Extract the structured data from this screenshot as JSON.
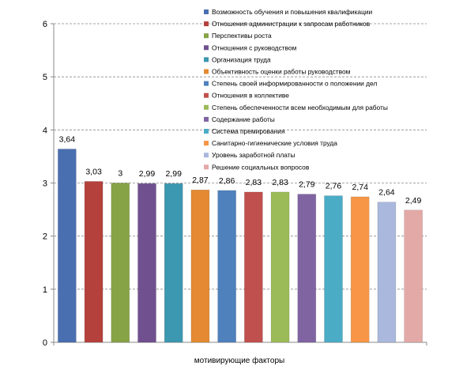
{
  "chart_data": {
    "type": "bar",
    "xlabel": "мотивирующие факторы",
    "ylabel": "",
    "title": "",
    "ylim": [
      0,
      6
    ],
    "yticks": [
      0,
      1,
      2,
      3,
      4,
      5,
      6
    ],
    "grid": true,
    "legend_position": "top-right",
    "series": [
      {
        "name": "Возможность обучения и повышения квалификации",
        "value": 3.64,
        "label": "3,64",
        "color": "#4a6fb0"
      },
      {
        "name": "Отношения администрации к запросам работников",
        "value": 3.03,
        "label": "3,03",
        "color": "#b5413c"
      },
      {
        "name": "Перспективы роста",
        "value": 3.0,
        "label": "3",
        "color": "#86a346"
      },
      {
        "name": "Отношения с руководством",
        "value": 2.99,
        "label": "2,99",
        "color": "#70508f"
      },
      {
        "name": "Организация труда",
        "value": 2.99,
        "label": "2,99",
        "color": "#3c97b0"
      },
      {
        "name": "Объективность оценки работы руководством",
        "value": 2.87,
        "label": "2,87",
        "color": "#e48a32"
      },
      {
        "name": "Степень своей информированности о положении дел",
        "value": 2.86,
        "label": "2,86",
        "color": "#4f81bd"
      },
      {
        "name": "Отношения в коллективе",
        "value": 2.83,
        "label": "2,83",
        "color": "#c0504d"
      },
      {
        "name": "Степень обеспеченности всем необходимым для работы",
        "value": 2.83,
        "label": "2,83",
        "color": "#9bbb59"
      },
      {
        "name": "Содержание работы",
        "value": 2.79,
        "label": "2,79",
        "color": "#8064a2"
      },
      {
        "name": "Система премирования",
        "value": 2.76,
        "label": "2,76",
        "color": "#4bacc6"
      },
      {
        "name": "Санитарно-гигиенические условия труда",
        "value": 2.74,
        "label": "2,74",
        "color": "#f79646"
      },
      {
        "name": "Уровень заработной платы",
        "value": 2.64,
        "label": "2,64",
        "color": "#aab8dd"
      },
      {
        "name": "Решение социальных вопросов",
        "value": 2.49,
        "label": "2,49",
        "color": "#e3a9a7"
      }
    ]
  }
}
